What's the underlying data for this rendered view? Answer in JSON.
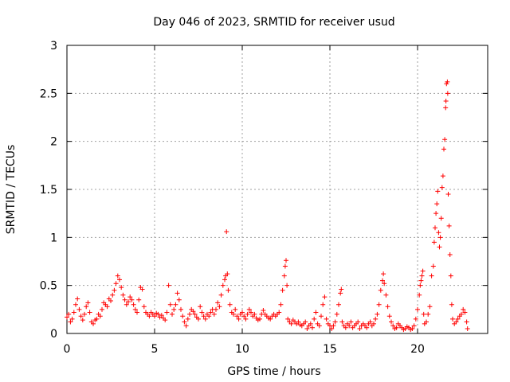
{
  "chart_data": {
    "type": "scatter",
    "title": "Day 046 of 2023, SRMTID for receiver usud",
    "xlabel": "GPS time / hours",
    "ylabel": "SRMTID / TECUs",
    "xlim": [
      0,
      24
    ],
    "ylim": [
      0,
      3
    ],
    "x_ticks": [
      0,
      5,
      10,
      15,
      20
    ],
    "x_tick_labels": [
      "0",
      "5",
      "10",
      "15",
      "20"
    ],
    "y_ticks": [
      0,
      0.5,
      1,
      1.5,
      2,
      2.5,
      3
    ],
    "y_tick_labels": [
      "0",
      "0.5",
      "1",
      "1.5",
      "2",
      "2.5",
      "3"
    ],
    "grid": true,
    "marker": "+",
    "color": "#ff0000",
    "series": [
      {
        "name": "usud",
        "points": [
          [
            0.0,
            0.17
          ],
          [
            0.1,
            0.2
          ],
          [
            0.2,
            0.12
          ],
          [
            0.3,
            0.15
          ],
          [
            0.4,
            0.22
          ],
          [
            0.5,
            0.3
          ],
          [
            0.6,
            0.36
          ],
          [
            0.7,
            0.25
          ],
          [
            0.8,
            0.18
          ],
          [
            0.9,
            0.14
          ],
          [
            1.0,
            0.2
          ],
          [
            1.1,
            0.28
          ],
          [
            1.2,
            0.32
          ],
          [
            1.3,
            0.22
          ],
          [
            1.4,
            0.12
          ],
          [
            1.5,
            0.1
          ],
          [
            1.6,
            0.14
          ],
          [
            1.7,
            0.15
          ],
          [
            1.8,
            0.2
          ],
          [
            1.9,
            0.18
          ],
          [
            2.0,
            0.25
          ],
          [
            2.1,
            0.32
          ],
          [
            2.2,
            0.3
          ],
          [
            2.3,
            0.28
          ],
          [
            2.4,
            0.36
          ],
          [
            2.5,
            0.34
          ],
          [
            2.6,
            0.4
          ],
          [
            2.7,
            0.45
          ],
          [
            2.8,
            0.52
          ],
          [
            2.9,
            0.6
          ],
          [
            3.0,
            0.56
          ],
          [
            3.1,
            0.48
          ],
          [
            3.2,
            0.4
          ],
          [
            3.3,
            0.35
          ],
          [
            3.4,
            0.3
          ],
          [
            3.5,
            0.33
          ],
          [
            3.6,
            0.38
          ],
          [
            3.7,
            0.35
          ],
          [
            3.8,
            0.3
          ],
          [
            3.9,
            0.25
          ],
          [
            4.0,
            0.22
          ],
          [
            4.1,
            0.35
          ],
          [
            4.2,
            0.48
          ],
          [
            4.3,
            0.46
          ],
          [
            4.4,
            0.28
          ],
          [
            4.5,
            0.22
          ],
          [
            4.6,
            0.2
          ],
          [
            4.7,
            0.18
          ],
          [
            4.8,
            0.22
          ],
          [
            4.9,
            0.2
          ],
          [
            5.0,
            0.18
          ],
          [
            5.1,
            0.21
          ],
          [
            5.2,
            0.2
          ],
          [
            5.3,
            0.17
          ],
          [
            5.4,
            0.19
          ],
          [
            5.5,
            0.16
          ],
          [
            5.6,
            0.14
          ],
          [
            5.7,
            0.22
          ],
          [
            5.8,
            0.5
          ],
          [
            5.9,
            0.3
          ],
          [
            6.0,
            0.2
          ],
          [
            6.1,
            0.25
          ],
          [
            6.2,
            0.3
          ],
          [
            6.3,
            0.42
          ],
          [
            6.4,
            0.35
          ],
          [
            6.5,
            0.25
          ],
          [
            6.6,
            0.18
          ],
          [
            6.7,
            0.12
          ],
          [
            6.8,
            0.08
          ],
          [
            6.9,
            0.15
          ],
          [
            7.0,
            0.2
          ],
          [
            7.1,
            0.25
          ],
          [
            7.2,
            0.23
          ],
          [
            7.3,
            0.2
          ],
          [
            7.4,
            0.17
          ],
          [
            7.5,
            0.15
          ],
          [
            7.6,
            0.28
          ],
          [
            7.7,
            0.22
          ],
          [
            7.8,
            0.18
          ],
          [
            7.9,
            0.15
          ],
          [
            8.0,
            0.2
          ],
          [
            8.1,
            0.18
          ],
          [
            8.2,
            0.22
          ],
          [
            8.3,
            0.25
          ],
          [
            8.4,
            0.2
          ],
          [
            8.5,
            0.25
          ],
          [
            8.6,
            0.32
          ],
          [
            8.7,
            0.28
          ],
          [
            8.8,
            0.4
          ],
          [
            8.9,
            0.5
          ],
          [
            9.0,
            0.56
          ],
          [
            9.05,
            0.6
          ],
          [
            9.1,
            1.06
          ],
          [
            9.15,
            0.62
          ],
          [
            9.2,
            0.45
          ],
          [
            9.3,
            0.3
          ],
          [
            9.4,
            0.22
          ],
          [
            9.5,
            0.2
          ],
          [
            9.6,
            0.25
          ],
          [
            9.7,
            0.18
          ],
          [
            9.8,
            0.15
          ],
          [
            9.9,
            0.2
          ],
          [
            10.0,
            0.22
          ],
          [
            10.1,
            0.18
          ],
          [
            10.2,
            0.15
          ],
          [
            10.3,
            0.2
          ],
          [
            10.4,
            0.25
          ],
          [
            10.5,
            0.22
          ],
          [
            10.6,
            0.18
          ],
          [
            10.7,
            0.2
          ],
          [
            10.8,
            0.16
          ],
          [
            10.9,
            0.14
          ],
          [
            11.0,
            0.15
          ],
          [
            11.1,
            0.2
          ],
          [
            11.2,
            0.24
          ],
          [
            11.3,
            0.2
          ],
          [
            11.4,
            0.18
          ],
          [
            11.5,
            0.16
          ],
          [
            11.6,
            0.15
          ],
          [
            11.7,
            0.18
          ],
          [
            11.8,
            0.2
          ],
          [
            11.9,
            0.18
          ],
          [
            12.0,
            0.2
          ],
          [
            12.1,
            0.22
          ],
          [
            12.2,
            0.3
          ],
          [
            12.3,
            0.45
          ],
          [
            12.4,
            0.6
          ],
          [
            12.45,
            0.7
          ],
          [
            12.5,
            0.76
          ],
          [
            12.55,
            0.5
          ],
          [
            12.6,
            0.15
          ],
          [
            12.7,
            0.12
          ],
          [
            12.8,
            0.1
          ],
          [
            12.9,
            0.14
          ],
          [
            13.0,
            0.12
          ],
          [
            13.1,
            0.1
          ],
          [
            13.2,
            0.12
          ],
          [
            13.3,
            0.09
          ],
          [
            13.4,
            0.08
          ],
          [
            13.5,
            0.1
          ],
          [
            13.6,
            0.12
          ],
          [
            13.7,
            0.05
          ],
          [
            13.8,
            0.08
          ],
          [
            13.9,
            0.1
          ],
          [
            14.0,
            0.06
          ],
          [
            14.1,
            0.15
          ],
          [
            14.2,
            0.22
          ],
          [
            14.3,
            0.1
          ],
          [
            14.4,
            0.08
          ],
          [
            14.5,
            0.18
          ],
          [
            14.6,
            0.3
          ],
          [
            14.7,
            0.38
          ],
          [
            14.8,
            0.15
          ],
          [
            14.9,
            0.1
          ],
          [
            15.0,
            0.08
          ],
          [
            15.1,
            0.05
          ],
          [
            15.2,
            0.08
          ],
          [
            15.3,
            0.12
          ],
          [
            15.4,
            0.2
          ],
          [
            15.5,
            0.3
          ],
          [
            15.6,
            0.42
          ],
          [
            15.65,
            0.46
          ],
          [
            15.7,
            0.12
          ],
          [
            15.8,
            0.08
          ],
          [
            15.9,
            0.06
          ],
          [
            16.0,
            0.1
          ],
          [
            16.1,
            0.08
          ],
          [
            16.2,
            0.12
          ],
          [
            16.3,
            0.06
          ],
          [
            16.4,
            0.08
          ],
          [
            16.5,
            0.1
          ],
          [
            16.6,
            0.12
          ],
          [
            16.7,
            0.05
          ],
          [
            16.8,
            0.08
          ],
          [
            16.9,
            0.1
          ],
          [
            17.0,
            0.08
          ],
          [
            17.1,
            0.06
          ],
          [
            17.2,
            0.1
          ],
          [
            17.3,
            0.12
          ],
          [
            17.4,
            0.08
          ],
          [
            17.5,
            0.1
          ],
          [
            17.6,
            0.15
          ],
          [
            17.7,
            0.2
          ],
          [
            17.8,
            0.3
          ],
          [
            17.9,
            0.45
          ],
          [
            18.0,
            0.55
          ],
          [
            18.05,
            0.62
          ],
          [
            18.1,
            0.52
          ],
          [
            18.2,
            0.4
          ],
          [
            18.3,
            0.28
          ],
          [
            18.4,
            0.18
          ],
          [
            18.5,
            0.12
          ],
          [
            18.6,
            0.08
          ],
          [
            18.7,
            0.05
          ],
          [
            18.8,
            0.06
          ],
          [
            18.9,
            0.1
          ],
          [
            19.0,
            0.08
          ],
          [
            19.1,
            0.06
          ],
          [
            19.2,
            0.04
          ],
          [
            19.3,
            0.05
          ],
          [
            19.4,
            0.07
          ],
          [
            19.5,
            0.06
          ],
          [
            19.6,
            0.04
          ],
          [
            19.7,
            0.05
          ],
          [
            19.8,
            0.08
          ],
          [
            19.9,
            0.15
          ],
          [
            20.0,
            0.25
          ],
          [
            20.1,
            0.4
          ],
          [
            20.15,
            0.5
          ],
          [
            20.2,
            0.55
          ],
          [
            20.25,
            0.6
          ],
          [
            20.3,
            0.65
          ],
          [
            20.35,
            0.2
          ],
          [
            20.4,
            0.1
          ],
          [
            20.5,
            0.12
          ],
          [
            20.6,
            0.2
          ],
          [
            20.7,
            0.28
          ],
          [
            20.8,
            0.6
          ],
          [
            20.9,
            0.7
          ],
          [
            20.95,
            0.95
          ],
          [
            21.0,
            1.1
          ],
          [
            21.05,
            1.25
          ],
          [
            21.1,
            1.35
          ],
          [
            21.15,
            1.48
          ],
          [
            21.2,
            1.05
          ],
          [
            21.25,
            0.9
          ],
          [
            21.3,
            1.0
          ],
          [
            21.35,
            1.2
          ],
          [
            21.4,
            1.52
          ],
          [
            21.45,
            1.64
          ],
          [
            21.5,
            1.92
          ],
          [
            21.55,
            2.02
          ],
          [
            21.6,
            2.35
          ],
          [
            21.62,
            2.42
          ],
          [
            21.65,
            2.6
          ],
          [
            21.7,
            2.62
          ],
          [
            21.72,
            2.5
          ],
          [
            21.75,
            1.45
          ],
          [
            21.8,
            1.12
          ],
          [
            21.85,
            0.82
          ],
          [
            21.9,
            0.6
          ],
          [
            21.95,
            0.3
          ],
          [
            22.0,
            0.15
          ],
          [
            22.1,
            0.1
          ],
          [
            22.2,
            0.12
          ],
          [
            22.3,
            0.15
          ],
          [
            22.4,
            0.18
          ],
          [
            22.5,
            0.2
          ],
          [
            22.6,
            0.25
          ],
          [
            22.7,
            0.22
          ],
          [
            22.8,
            0.12
          ],
          [
            22.85,
            0.05
          ]
        ]
      }
    ]
  }
}
